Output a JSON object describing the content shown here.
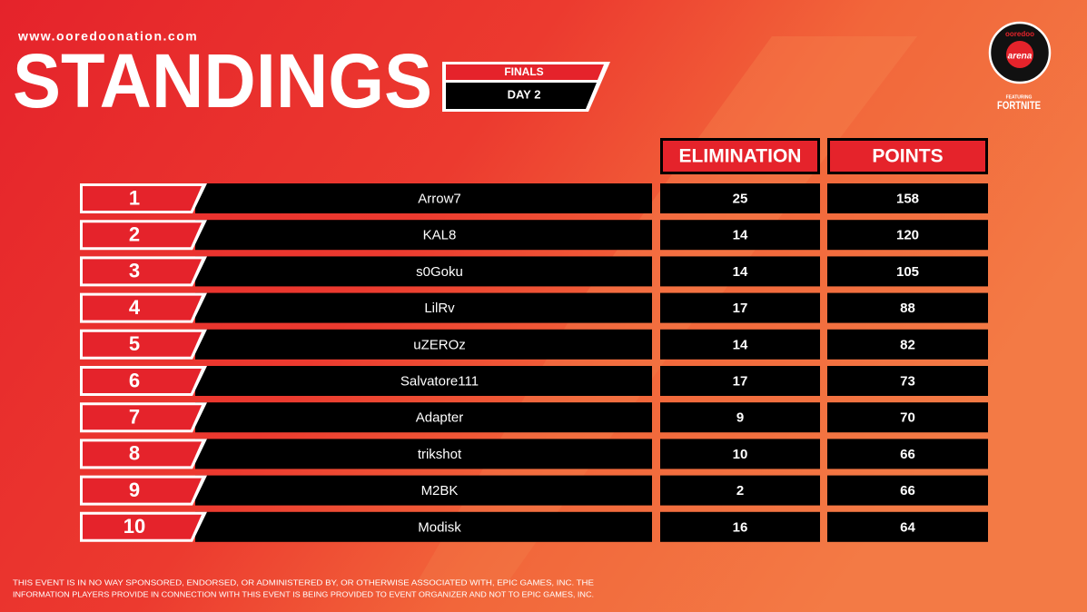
{
  "header": {
    "url": "www.ooredoonation.com",
    "title": "STANDINGS",
    "stage": "FINALS",
    "day": "DAY 2",
    "logo": {
      "brand": "ooredoo",
      "name": "arena",
      "featuring": "FEATURING",
      "game": "FORTNITE"
    }
  },
  "table": {
    "columns": [
      "ELIMINATION",
      "POINTS"
    ],
    "rows": [
      [
        1,
        "Arrow7",
        25,
        158
      ],
      [
        2,
        "KAL8",
        14,
        120
      ],
      [
        3,
        "s0Goku",
        14,
        105
      ],
      [
        4,
        "LilRv",
        17,
        88
      ],
      [
        5,
        "uZEROz",
        14,
        82
      ],
      [
        6,
        "Salvatore111",
        17,
        73
      ],
      [
        7,
        "Adapter",
        9,
        70
      ],
      [
        8,
        "trikshot",
        10,
        66
      ],
      [
        9,
        "M2BK",
        2,
        66
      ],
      [
        10,
        "Modisk",
        16,
        64
      ]
    ]
  },
  "footer": {
    "disclaimer": [
      "THIS EVENT IS IN NO WAY SPONSORED, ENDORSED, OR ADMINISTERED BY, OR OTHERWISE ASSOCIATED WITH, EPIC GAMES, INC. THE",
      "INFORMATION PLAYERS PROVIDE IN CONNECTION WITH THIS EVENT IS BEING PROVIDED TO EVENT ORGANIZER AND NOT TO EPIC GAMES, INC."
    ]
  }
}
